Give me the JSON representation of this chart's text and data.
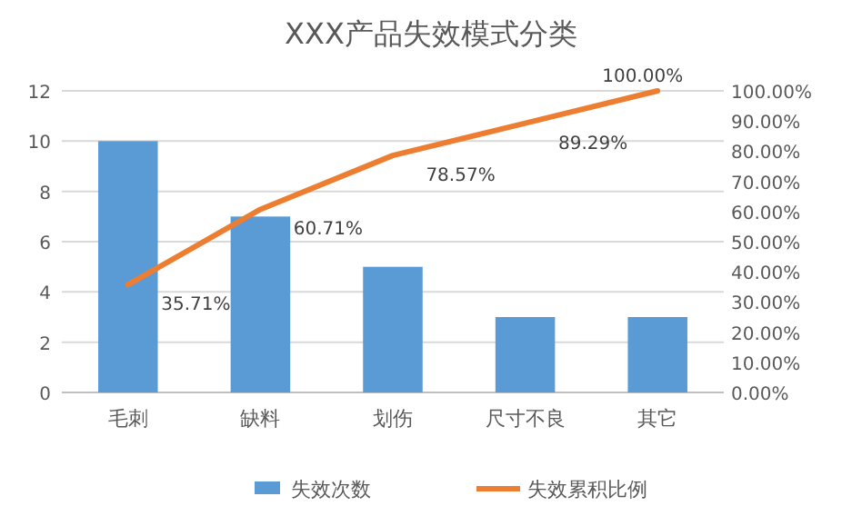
{
  "chart_data": {
    "type": "bar",
    "title": "XXX产品失效模式分类",
    "categories": [
      "毛刺",
      "缺料",
      "划伤",
      "尺寸不良",
      "其它"
    ],
    "series": [
      {
        "name": "失效次数",
        "color": "#5b9bd5",
        "values": [
          10,
          7,
          5,
          3,
          3
        ]
      },
      {
        "name": "失效累积比例",
        "type": "line",
        "axis": "y2",
        "color": "#ed7d31",
        "values": [
          35.71,
          60.71,
          78.57,
          89.29,
          100
        ],
        "value_labels": [
          "35.71%",
          "60.71%",
          "78.57%",
          "89.29%",
          "100.00%"
        ]
      }
    ],
    "ylim": [
      0,
      12
    ],
    "yticks": [
      0,
      2,
      4,
      6,
      8,
      10,
      12
    ],
    "y2lim": [
      0,
      100
    ],
    "y2ticks": [
      {
        "value": 0,
        "label": "0.00%"
      },
      {
        "value": 10,
        "label": "10.00%"
      },
      {
        "value": 20,
        "label": "20.00%"
      },
      {
        "value": 30,
        "label": "30.00%"
      },
      {
        "value": 40,
        "label": "40.00%"
      },
      {
        "value": 50,
        "label": "50.00%"
      },
      {
        "value": 60,
        "label": "60.00%"
      },
      {
        "value": 70,
        "label": "70.00%"
      },
      {
        "value": 80,
        "label": "80.00%"
      },
      {
        "value": 90,
        "label": "90.00%"
      },
      {
        "value": 100,
        "label": "100.00%"
      }
    ],
    "grid": "y",
    "legend": "bottom"
  }
}
